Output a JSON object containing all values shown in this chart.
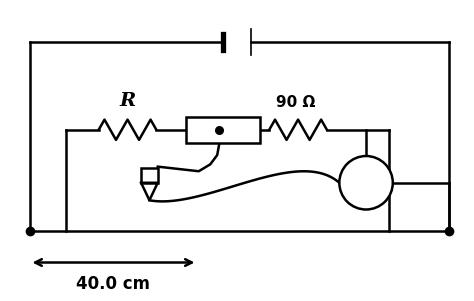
{
  "bg_color": "#ffffff",
  "line_color": "#000000",
  "fig_width": 4.74,
  "fig_height": 3.01,
  "label_R": "R",
  "label_90": "90 Ω",
  "label_distance": "40.0 cm"
}
